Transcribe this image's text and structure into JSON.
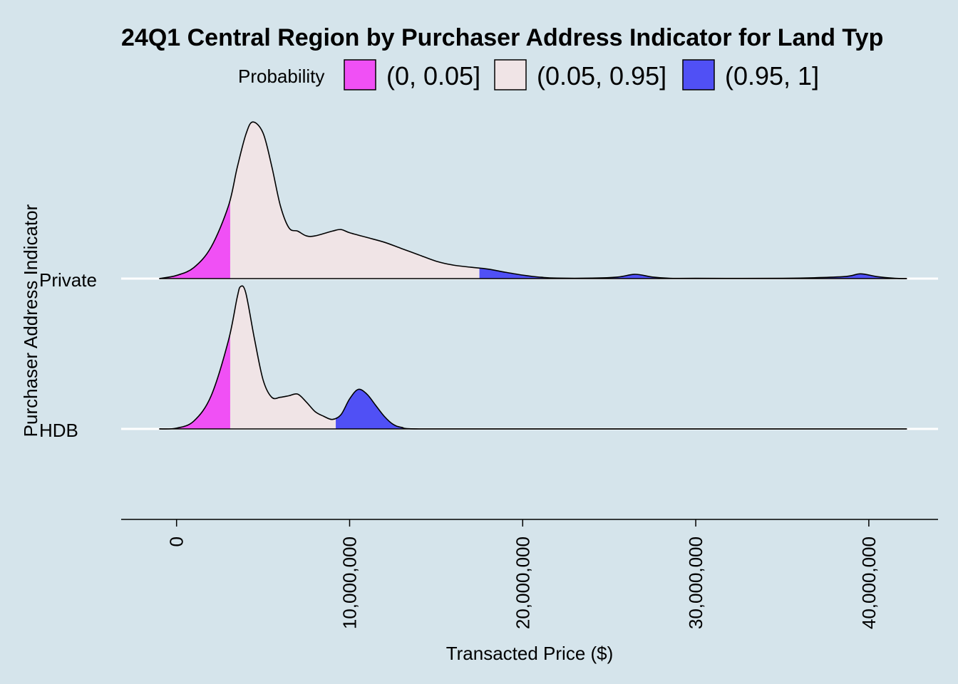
{
  "chart_data": {
    "type": "ridgeline-density",
    "title": "24Q1 Central Region by Purchaser Address Indicator for Land Typ",
    "xlabel": "Transacted Price ($)",
    "ylabel": "Purchaser Address Indicator",
    "xlim": [
      -3200000,
      44000000
    ],
    "x_ticks": [
      0,
      10000000,
      20000000,
      30000000,
      40000000
    ],
    "x_tick_labels": [
      "0",
      "10,000,000",
      "20,000,000",
      "30,000,000",
      "40,000,000"
    ],
    "categories": [
      "Private",
      "HDB"
    ],
    "legend": {
      "title": "Probability",
      "placement": "top",
      "items": [
        {
          "label": "(0, 0.05]",
          "color": "#f050f5"
        },
        {
          "label": "(0.05, 0.95]",
          "color": "#f0e4e6"
        },
        {
          "label": "(0.95, 1]",
          "color": "#5050f5"
        }
      ]
    },
    "series": [
      {
        "name": "Private",
        "quantile_05": 3100000,
        "quantile_95": 17500000,
        "x": [
          -1000000,
          0,
          1000000,
          2000000,
          3000000,
          3500000,
          4000000,
          4400000,
          5000000,
          5500000,
          6000000,
          6500000,
          7000000,
          7500000,
          8000000,
          9000000,
          9500000,
          10000000,
          11000000,
          12000000,
          13000000,
          14000000,
          15000000,
          16000000,
          17000000,
          18000000,
          19000000,
          20000000,
          21000000,
          22000000,
          24000000,
          25500000,
          26500000,
          27500000,
          28500000,
          30000000,
          35000000,
          38500000,
          39500000,
          40500000,
          41500000,
          42200000
        ],
        "y": [
          0,
          0.02,
          0.07,
          0.2,
          0.46,
          0.7,
          0.91,
          0.99,
          0.92,
          0.71,
          0.46,
          0.32,
          0.3,
          0.27,
          0.27,
          0.3,
          0.31,
          0.29,
          0.26,
          0.23,
          0.19,
          0.15,
          0.11,
          0.085,
          0.072,
          0.06,
          0.04,
          0.022,
          0.009,
          0.003,
          0.003,
          0.01,
          0.027,
          0.01,
          0.002,
          0.002,
          0.002,
          0.012,
          0.03,
          0.012,
          0.002,
          0
        ]
      },
      {
        "name": "HDB",
        "quantile_05": 3100000,
        "quantile_95": 9200000,
        "x": [
          -1000000,
          0,
          1000000,
          2000000,
          3000000,
          3500000,
          3700000,
          4000000,
          4500000,
          5000000,
          5500000,
          6000000,
          6500000,
          7000000,
          7500000,
          8000000,
          8500000,
          9000000,
          9500000,
          10000000,
          10500000,
          11000000,
          11500000,
          12000000,
          12500000,
          13000000,
          14000000,
          20000000,
          30000000,
          42200000
        ],
        "y": [
          0,
          0.005,
          0.05,
          0.21,
          0.56,
          0.83,
          0.9,
          0.86,
          0.57,
          0.31,
          0.2,
          0.2,
          0.21,
          0.22,
          0.17,
          0.11,
          0.08,
          0.06,
          0.09,
          0.19,
          0.25,
          0.22,
          0.15,
          0.08,
          0.03,
          0.01,
          0,
          0,
          0,
          0
        ]
      }
    ]
  }
}
